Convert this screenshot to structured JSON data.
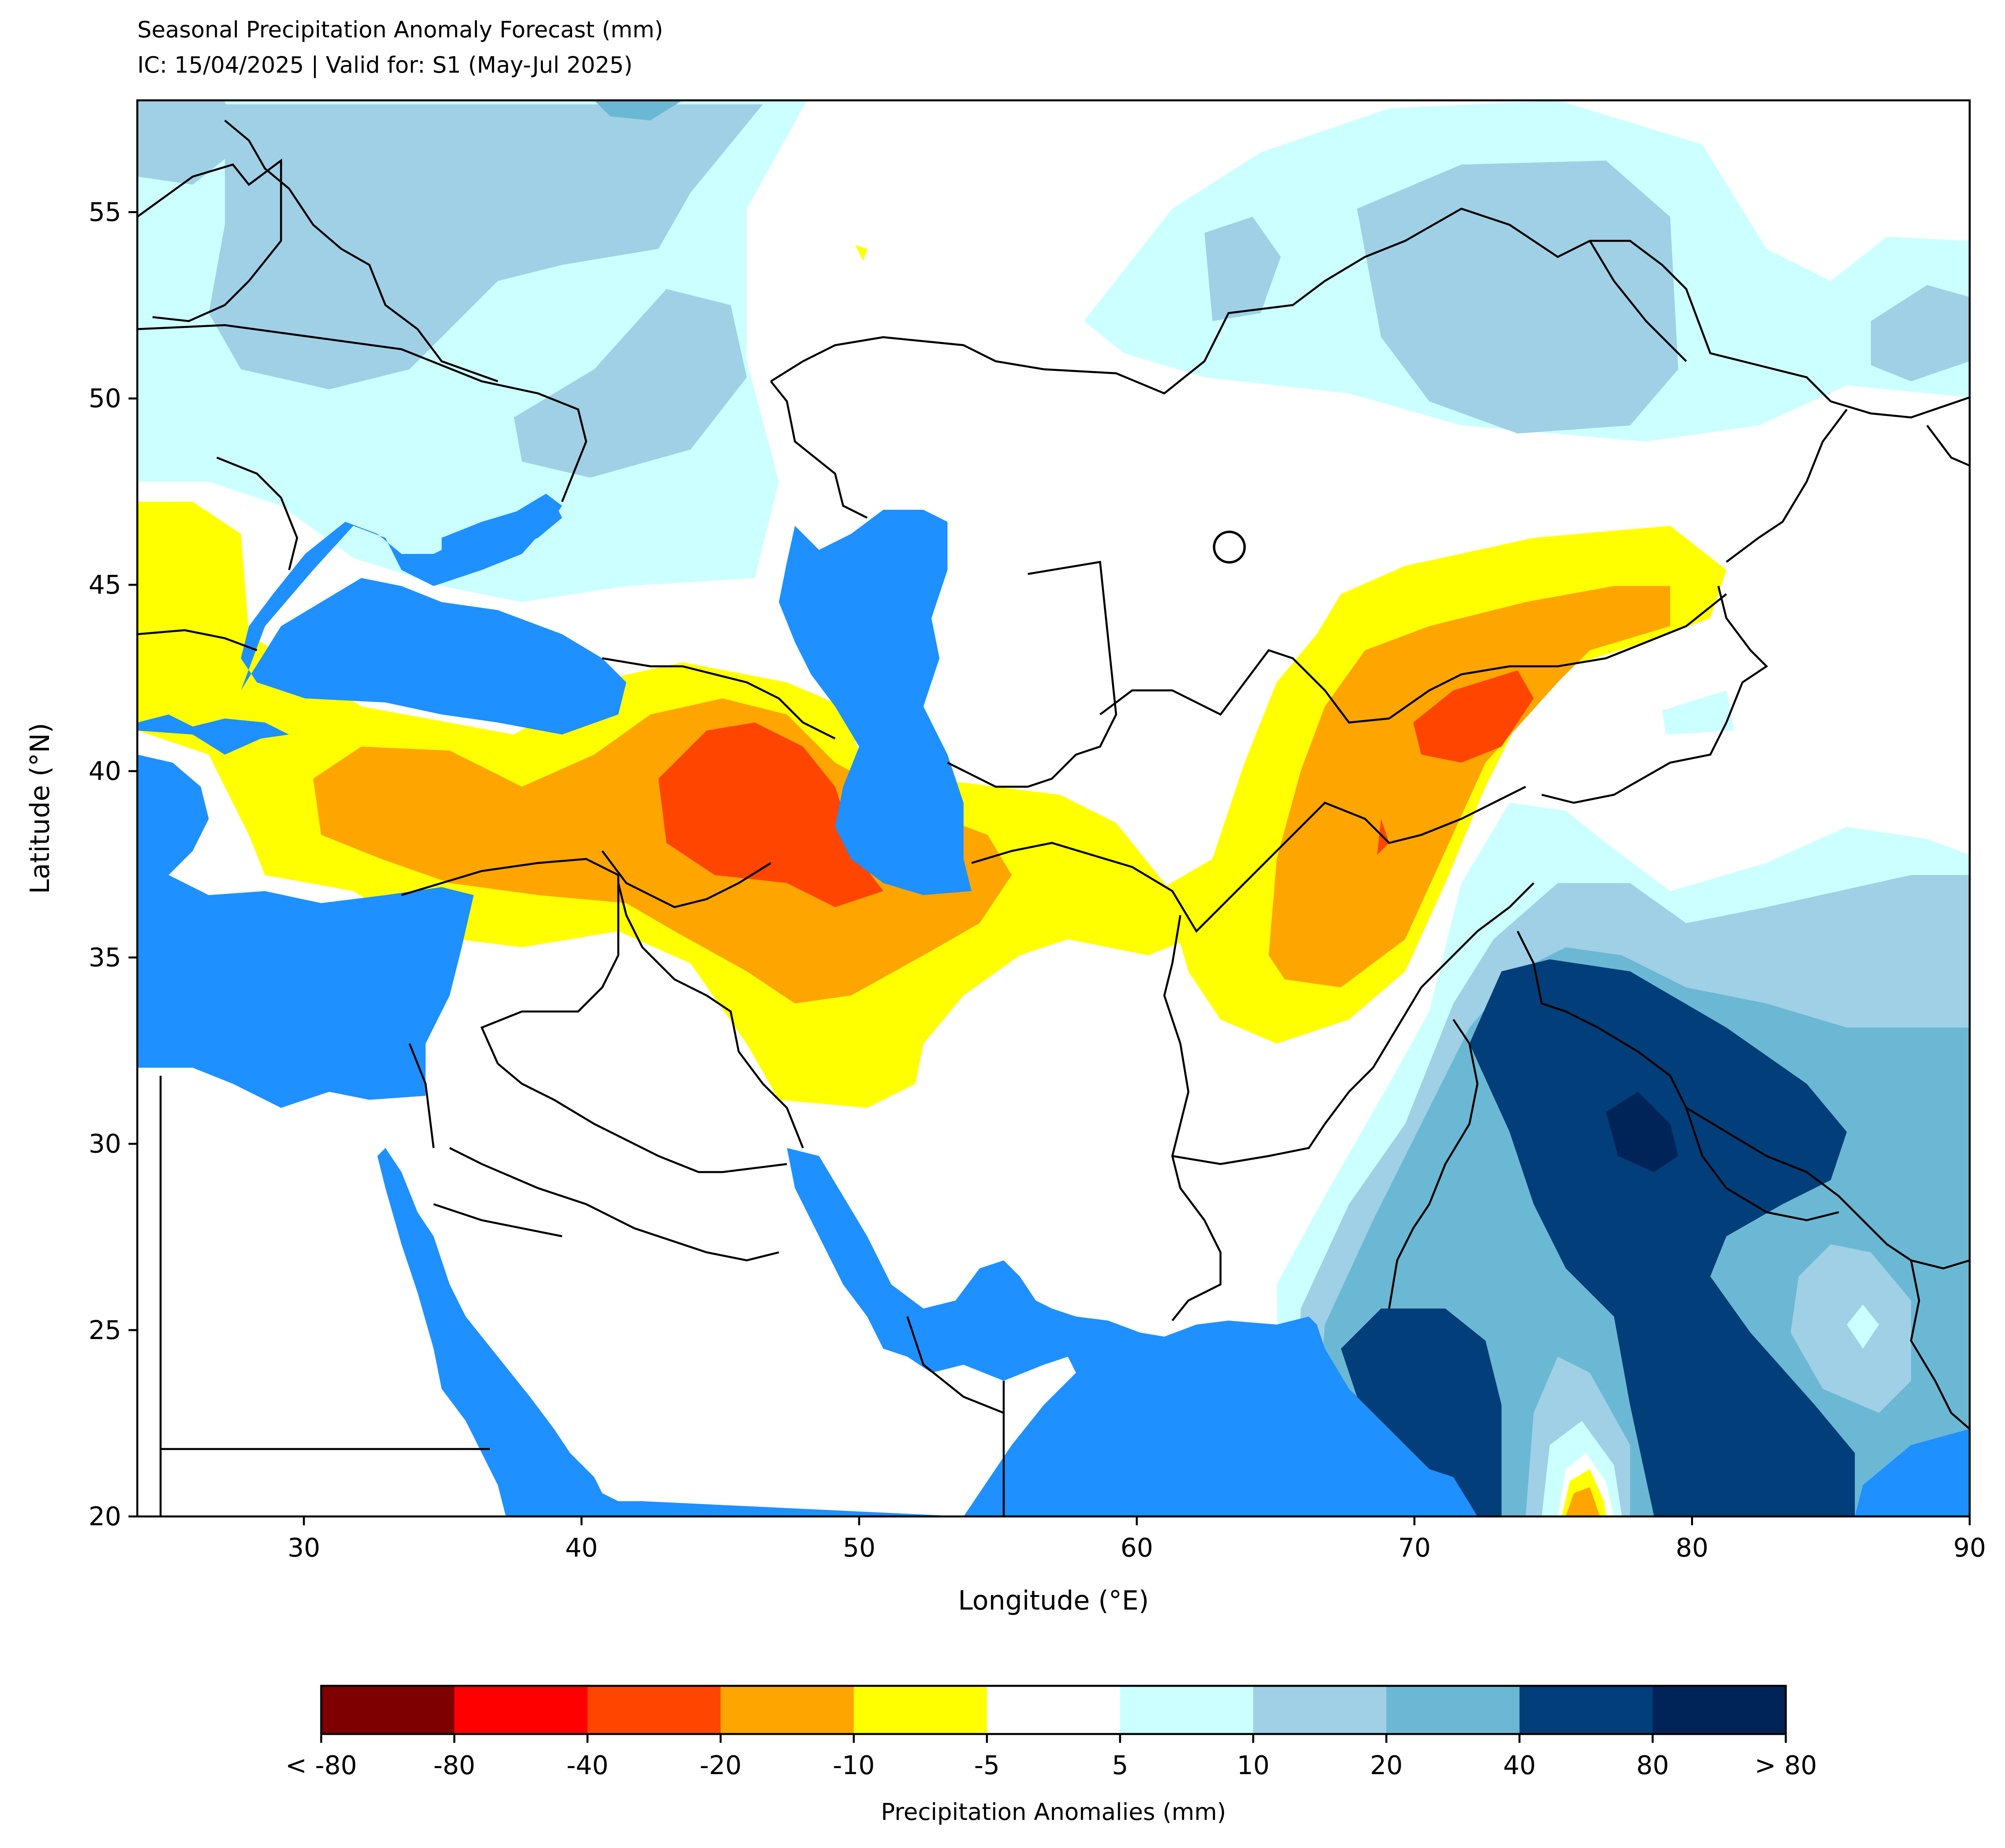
{
  "title": "Seasonal Precipitation Anomaly Forecast (mm)",
  "subtitle": "IC: 15/04/2025 | Valid for: S1 (May-Jul 2025)",
  "axes": {
    "xlabel": "Longitude (°E)",
    "ylabel": "Latitude (°N)",
    "xlim": [
      24,
      90
    ],
    "ylim": [
      20,
      58
    ],
    "xticks": [
      30,
      40,
      50,
      60,
      70,
      80,
      90
    ],
    "yticks": [
      20,
      25,
      30,
      35,
      40,
      45,
      50,
      55
    ]
  },
  "colorbar": {
    "label": "Precipitation Anomalies (mm)",
    "tick_labels": [
      "< -80",
      "-80",
      "-40",
      "-20",
      "-10",
      "-5",
      "5",
      "10",
      "20",
      "40",
      "80",
      "> 80"
    ],
    "colors": [
      "#7f0000",
      "#ff0000",
      "#ff4500",
      "#ffa500",
      "#ffff00",
      "#ffffff",
      "#ccffff",
      "#a0d0e6",
      "#6bb8d4",
      "#023e7a",
      "#012458"
    ]
  },
  "colors": {
    "water": "#1e90ff",
    "border": "#000000",
    "background": "#ffffff"
  },
  "map_layers": [
    {
      "name": "wet-europe",
      "anomaly_class": "5 to 10 / 10 to 20 mm",
      "color": "#a0d0e6"
    },
    {
      "name": "wet-siberia",
      "anomaly_class": "5 to 10 / 10 to 20 mm",
      "color": "#a0d0e6"
    },
    {
      "name": "dry-anatolia-iran",
      "anomaly_class": "-10 to -40 mm",
      "color": "#ffa500"
    },
    {
      "name": "dry-central-asia",
      "anomaly_class": "-10 to -40 mm",
      "color": "#ffa500"
    },
    {
      "name": "wet-south-asia",
      "anomaly_class": "20 to > 80 mm",
      "color": "#023e7a"
    }
  ]
}
